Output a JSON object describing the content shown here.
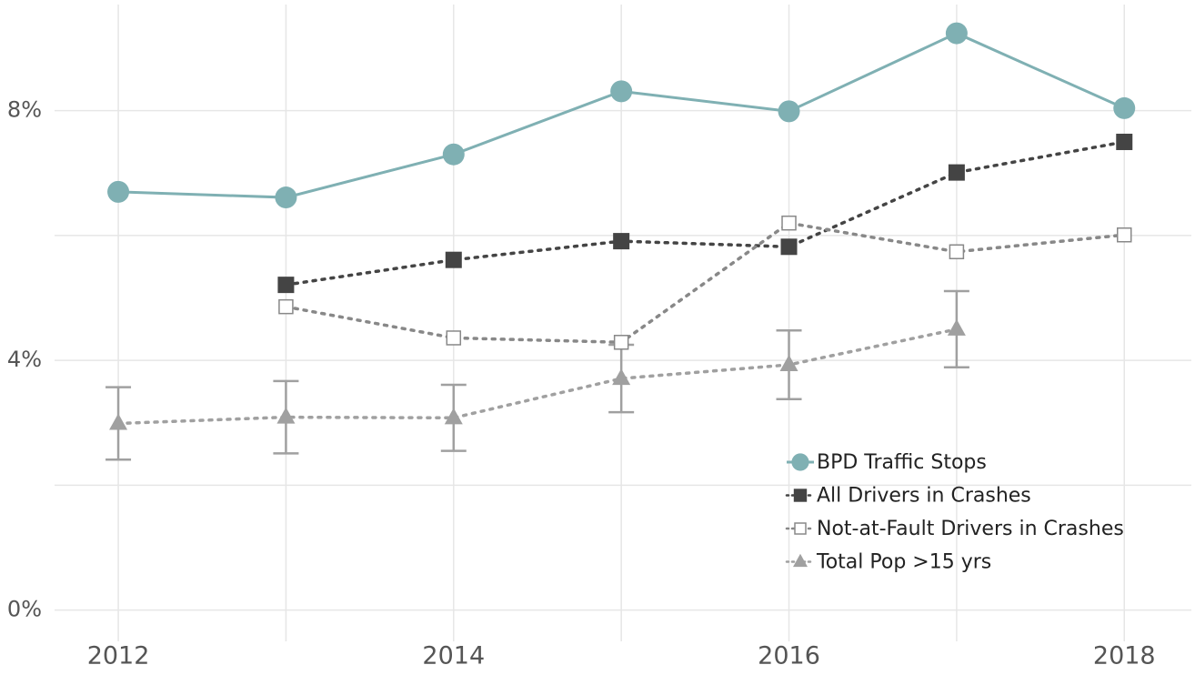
{
  "chart_data": {
    "type": "line",
    "x": [
      2012,
      2013,
      2014,
      2015,
      2016,
      2017,
      2018
    ],
    "xlim": [
      2011.62,
      2018.4
    ],
    "xticks": [
      2012,
      2014,
      2016,
      2018
    ],
    "minor_xticks": [
      2013,
      2015,
      2017
    ],
    "ylim": [
      -0.5,
      9.7
    ],
    "yticks": [
      {
        "value": 0,
        "label": "0%"
      },
      {
        "value": 4,
        "label": "4%"
      },
      {
        "value": 8,
        "label": "8%"
      }
    ],
    "minor_yticks": [
      2,
      6
    ],
    "grid": true,
    "legend": "lower right",
    "series": [
      {
        "name": "BPD Traffic Stops",
        "color": "#7fb0b3",
        "marker": "circle",
        "line": "solid",
        "values": [
          6.7,
          6.61,
          7.3,
          8.31,
          7.99,
          9.24,
          8.04
        ]
      },
      {
        "name": "All Drivers in Crashes",
        "color": "#444444",
        "marker": "square",
        "line": "dotted",
        "values": [
          null,
          5.21,
          5.61,
          5.91,
          5.82,
          7.01,
          7.5
        ]
      },
      {
        "name": "Not-at-Fault Drivers in Crashes",
        "color": "#888888",
        "marker": "open-square",
        "line": "dotted",
        "values": [
          null,
          4.86,
          4.36,
          4.29,
          6.2,
          5.74,
          6.01
        ]
      },
      {
        "name": "Total Pop >15 yrs",
        "color": "#a0a0a0",
        "marker": "triangle",
        "line": "dotted",
        "values": [
          2.99,
          3.09,
          3.08,
          3.71,
          3.93,
          4.5,
          null
        ],
        "errors": [
          0.58,
          0.58,
          0.53,
          0.54,
          0.55,
          0.61,
          null
        ]
      }
    ]
  }
}
